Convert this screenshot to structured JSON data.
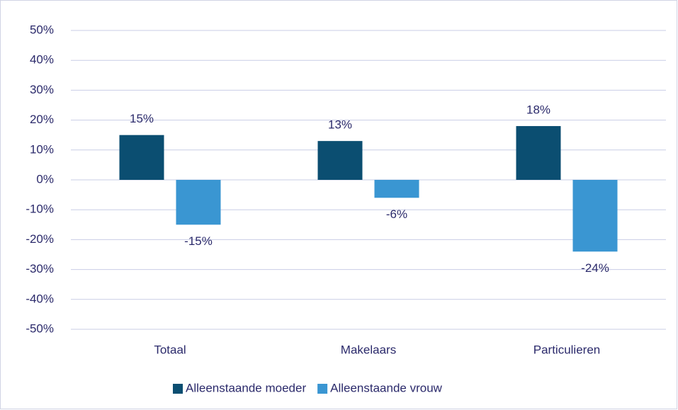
{
  "chart_data": {
    "type": "bar",
    "categories": [
      "Totaal",
      "Makelaars",
      "Particulieren"
    ],
    "series": [
      {
        "name": "Alleenstaande moeder",
        "color": "#0b4e71",
        "values": [
          15,
          13,
          18
        ],
        "value_labels": [
          "15%",
          "13%",
          "18%"
        ]
      },
      {
        "name": "Alleenstaande vrouw",
        "color": "#3a96d2",
        "values": [
          -15,
          -6,
          -24
        ],
        "value_labels": [
          "-15%",
          "-6%",
          "-24%"
        ]
      }
    ],
    "ylim": [
      -50,
      50
    ],
    "yticks": [
      {
        "value": -50,
        "label": "-50%"
      },
      {
        "value": -40,
        "label": "-40%"
      },
      {
        "value": -30,
        "label": "-30%"
      },
      {
        "value": -20,
        "label": "-20%"
      },
      {
        "value": -10,
        "label": "-10%"
      },
      {
        "value": 0,
        "label": "0%"
      },
      {
        "value": 10,
        "label": "10%"
      },
      {
        "value": 20,
        "label": "20%"
      },
      {
        "value": 30,
        "label": "30%"
      },
      {
        "value": 40,
        "label": "40%"
      },
      {
        "value": 50,
        "label": "50%"
      }
    ],
    "grid": true,
    "legend": "bottom"
  }
}
